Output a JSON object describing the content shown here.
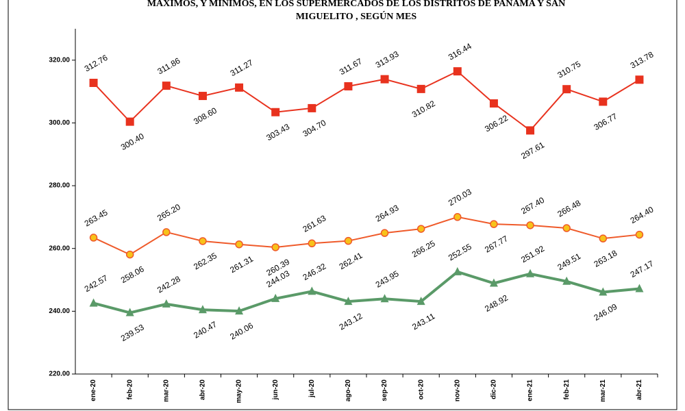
{
  "chart_data": {
    "type": "line",
    "title_lines": [
      "MAXIMOS, Y MINIMOS, EN LOS SUPERMERCADOS DE LOS DISTRITOS DE PANAMA Y SAN",
      "MIGUELITO , SEGÚN MES"
    ],
    "categories": [
      "ene-20",
      "feb-20",
      "mar-20",
      "abr-20",
      "may-20",
      "jun-20",
      "jul-20",
      "ago-20",
      "sep-20",
      "oct-20",
      "nov-20",
      "dic-20",
      "ene-21",
      "feb-21",
      "mar-21",
      "abr-21"
    ],
    "series": [
      {
        "color": "#e8321e",
        "marker": "square",
        "values": [
          312.76,
          300.4,
          311.86,
          308.6,
          311.27,
          303.43,
          304.7,
          311.67,
          313.93,
          310.82,
          316.44,
          306.22,
          297.61,
          310.75,
          306.77,
          313.78
        ],
        "value_labels": [
          "312.76",
          "300.40",
          "311.86",
          "308.60",
          "311.27",
          "303.43",
          "304.70",
          "311.67",
          "313.93",
          "310.82",
          "316.44",
          "306.22",
          "297.61",
          "310.75",
          "306.77",
          "313.78"
        ]
      },
      {
        "color": "#ef5a2a",
        "marker": "circle",
        "values": [
          263.45,
          258.06,
          265.2,
          262.35,
          261.31,
          260.39,
          261.63,
          262.41,
          264.93,
          266.25,
          270.03,
          267.77,
          267.4,
          266.48,
          263.18,
          264.4
        ],
        "value_labels": [
          "263.45",
          "258.06",
          "265.20",
          "262.35",
          "261.31",
          "260.39",
          "261.63",
          "262.41",
          "264.93",
          "266.25",
          "270.03",
          "267.77",
          "267.40",
          "266.48",
          "263.18",
          "264.40"
        ]
      },
      {
        "color": "#5a9a68",
        "marker": "triangle",
        "values": [
          242.57,
          239.53,
          242.28,
          240.47,
          240.06,
          244.03,
          246.32,
          243.12,
          243.95,
          243.11,
          252.55,
          248.92,
          251.92,
          249.51,
          246.09,
          247.17
        ],
        "value_labels": [
          "242.57",
          "239.53",
          "242.28",
          "240.47",
          "240.06",
          "244.03",
          "246.32",
          "243.12",
          "243.95",
          "243.11",
          "252.55",
          "248.92",
          "251.92",
          "249.51",
          "246.09",
          "247.17"
        ]
      }
    ],
    "ylim": [
      220,
      330
    ],
    "yticks": [
      {
        "value": 220,
        "label": "220.00"
      },
      {
        "value": 240,
        "label": "240.00"
      },
      {
        "value": 260,
        "label": "260.00"
      },
      {
        "value": 280,
        "label": "280.00"
      },
      {
        "value": 300,
        "label": "300.00"
      },
      {
        "value": 320,
        "label": "320.00"
      }
    ]
  }
}
